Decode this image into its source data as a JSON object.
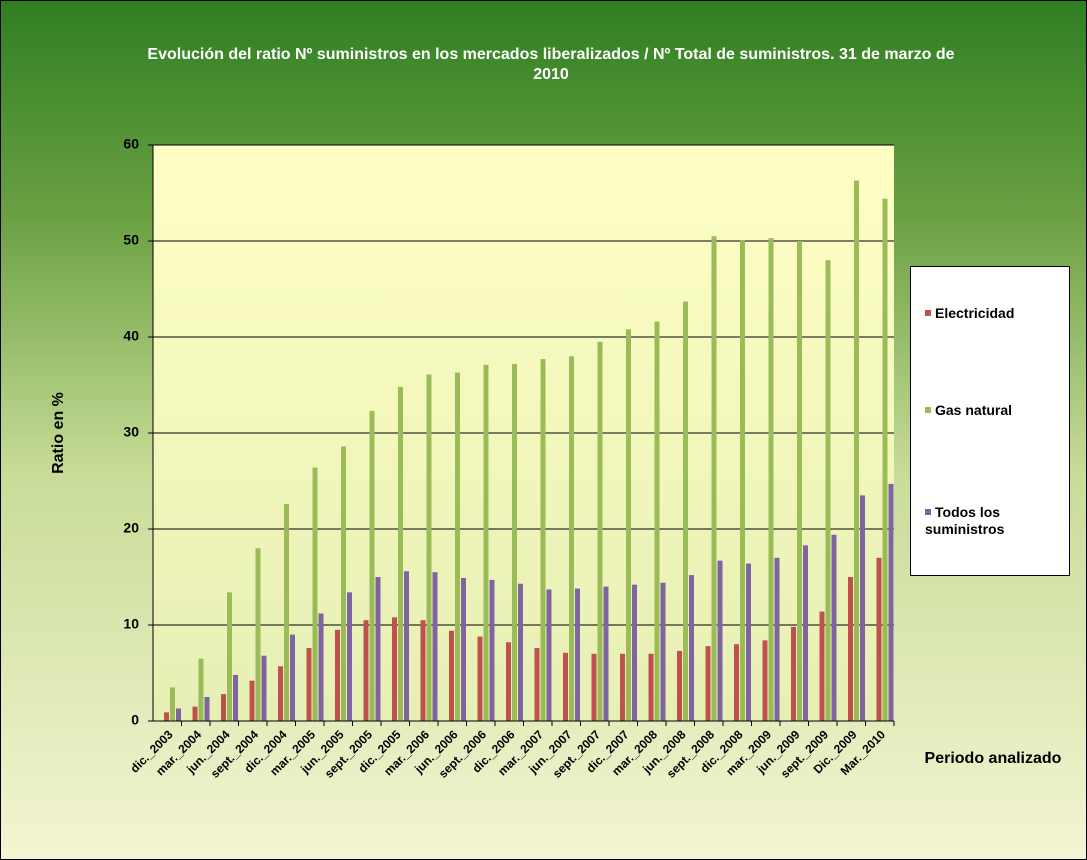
{
  "chart_data": {
    "type": "bar",
    "title": "Evolución del ratio Nº suministros  en  los mercados liberalizados / Nº Total de suministros.  31 de marzo de 2010",
    "x_label": "Periodo analizado",
    "y_label": "Ratio en %",
    "categories": [
      "dic._2003",
      "mar._2004",
      "jun._2004",
      "sept._2004",
      "dic._2004",
      "mar._2005",
      "jun._2005",
      "sept._2005",
      "dic._2005",
      "mar._2006",
      "jun._2006",
      "sept._2006",
      "dic._2006",
      "mar._2007",
      "jun._2007",
      "sept._2007",
      "dic._2007",
      "mar._2008",
      "jun._2008",
      "sept._2008",
      "dic._2008",
      "mar._2009",
      "jun._2009",
      "sept._2009",
      "Dic._2009",
      "Mar._2010"
    ],
    "series": [
      {
        "name": "Electricidad",
        "color": "#c0504d",
        "values": [
          0.9,
          1.5,
          2.8,
          4.2,
          5.7,
          7.6,
          9.5,
          10.5,
          10.8,
          10.5,
          9.4,
          8.8,
          8.2,
          7.6,
          7.1,
          7.0,
          7.0,
          7.0,
          7.3,
          7.8,
          8.0,
          8.4,
          9.8,
          11.4,
          15.0,
          17.0
        ]
      },
      {
        "name": "Gas natural",
        "color": "#9bbb59",
        "values": [
          3.5,
          6.5,
          13.4,
          18.0,
          22.6,
          26.4,
          28.6,
          32.3,
          34.8,
          36.1,
          36.3,
          37.1,
          37.2,
          37.7,
          38.0,
          39.5,
          40.8,
          41.6,
          43.7,
          50.5,
          50.1,
          50.3,
          50.0,
          48.0,
          56.3,
          54.4
        ]
      },
      {
        "name": "Todos los suministros",
        "color": "#8064a2",
        "values": [
          1.3,
          2.5,
          4.8,
          6.8,
          9.0,
          11.2,
          13.4,
          15.0,
          15.6,
          15.5,
          14.9,
          14.7,
          14.3,
          13.7,
          13.8,
          14.0,
          14.2,
          14.4,
          15.2,
          16.7,
          16.4,
          17.0,
          18.3,
          19.4,
          23.5,
          24.7
        ]
      }
    ],
    "ylim": [
      0,
      60
    ],
    "yticks": [
      0,
      10,
      20,
      30,
      40,
      50,
      60
    ],
    "grid": true,
    "legend": "right"
  }
}
